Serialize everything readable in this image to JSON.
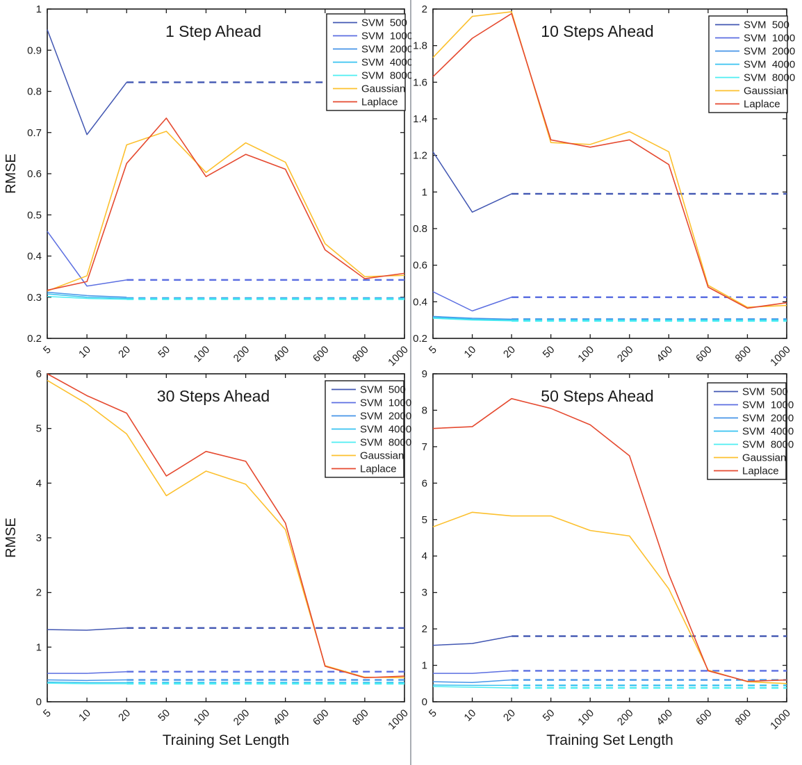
{
  "figure": {
    "xlabel": "Training Set Length",
    "ylabel": "RMSE",
    "categories": [
      "5",
      "10",
      "20",
      "50",
      "100",
      "200",
      "400",
      "600",
      "800",
      "1000"
    ],
    "palette": {
      "svm500": "#4156b2",
      "svm1000": "#5b6ee1",
      "svm2000": "#4695e8",
      "svm4000": "#38c3f0",
      "svm8000": "#4deef2",
      "gaussian": "#fcc02e",
      "laplace": "#e5492f",
      "axis": "#1a1a1a"
    }
  },
  "chart_data": [
    {
      "type": "line",
      "title": "1 Step Ahead",
      "ylabel": "RMSE",
      "xlabel": "",
      "ylim": [
        0.2,
        1
      ],
      "ytick_labels": [
        "0.2",
        "0.3",
        "0.4",
        "0.5",
        "0.6",
        "0.7",
        "0.8",
        "0.9",
        "1"
      ],
      "legend_position": "top-right",
      "grid": false,
      "series": [
        {
          "name": "SVM  500",
          "color": "#4156b2",
          "values": [
            0.95,
            0.695,
            0.822
          ],
          "dashed_value": 0.822
        },
        {
          "name": "SVM  1000",
          "color": "#5b6ee1",
          "values": [
            0.46,
            0.327,
            0.342
          ],
          "dashed_value": 0.342
        },
        {
          "name": "SVM  2000",
          "color": "#4695e8",
          "values": [
            0.312,
            0.304,
            0.3
          ],
          "dashed_value": 0.298
        },
        {
          "name": "SVM  4000",
          "color": "#38c3f0",
          "values": [
            0.308,
            0.3,
            0.297
          ],
          "dashed_value": 0.2965
        },
        {
          "name": "SVM  8000",
          "color": "#4deef2",
          "values": [
            0.302,
            0.297,
            0.295
          ],
          "dashed_value": 0.295
        },
        {
          "name": "Gaussian",
          "color": "#fcc02e",
          "values": [
            0.315,
            0.352,
            0.67,
            0.703,
            0.603,
            0.675,
            0.628,
            0.43,
            0.35,
            0.353
          ],
          "dashed_value": null
        },
        {
          "name": "Laplace",
          "color": "#e5492f",
          "values": [
            0.317,
            0.338,
            0.625,
            0.735,
            0.593,
            0.647,
            0.611,
            0.415,
            0.345,
            0.358
          ],
          "dashed_value": null
        }
      ]
    },
    {
      "type": "line",
      "title": "10 Steps Ahead",
      "ylabel": "",
      "xlabel": "",
      "ylim": [
        0.2,
        2
      ],
      "ytick_labels": [
        "0.2",
        "0.4",
        "0.6",
        "0.8",
        "1",
        "1.2",
        "1.4",
        "1.6",
        "1.8",
        "2"
      ],
      "legend_position": "top-right",
      "grid": false,
      "series": [
        {
          "name": "SVM  500",
          "color": "#4156b2",
          "values": [
            1.22,
            0.89,
            0.99
          ],
          "dashed_value": 0.99
        },
        {
          "name": "SVM  1000",
          "color": "#5b6ee1",
          "values": [
            0.455,
            0.35,
            0.425
          ],
          "dashed_value": 0.425
        },
        {
          "name": "SVM  2000",
          "color": "#4695e8",
          "values": [
            0.32,
            0.31,
            0.305
          ],
          "dashed_value": 0.305
        },
        {
          "name": "SVM  4000",
          "color": "#38c3f0",
          "values": [
            0.315,
            0.305,
            0.3
          ],
          "dashed_value": 0.3
        },
        {
          "name": "SVM  8000",
          "color": "#4deef2",
          "values": [
            0.31,
            0.3,
            0.296
          ],
          "dashed_value": 0.295
        },
        {
          "name": "Gaussian",
          "color": "#fcc02e",
          "values": [
            1.735,
            1.96,
            1.985,
            1.27,
            1.26,
            1.33,
            1.22,
            0.49,
            0.37,
            0.38
          ],
          "dashed_value": null
        },
        {
          "name": "Laplace",
          "color": "#e5492f",
          "values": [
            1.63,
            1.84,
            1.975,
            1.285,
            1.245,
            1.285,
            1.15,
            0.48,
            0.365,
            0.395
          ],
          "dashed_value": null
        }
      ]
    },
    {
      "type": "line",
      "title": "30 Steps Ahead",
      "ylabel": "RMSE",
      "xlabel": "Training Set Length",
      "ylim": [
        0,
        6
      ],
      "ytick_labels": [
        "0",
        "1",
        "2",
        "3",
        "4",
        "5",
        "6"
      ],
      "legend_position": "top-right",
      "grid": false,
      "series": [
        {
          "name": "SVM  500",
          "color": "#4156b2",
          "values": [
            1.32,
            1.31,
            1.35
          ],
          "dashed_value": 1.35
        },
        {
          "name": "SVM  1000",
          "color": "#5b6ee1",
          "values": [
            0.52,
            0.52,
            0.55
          ],
          "dashed_value": 0.55
        },
        {
          "name": "SVM  2000",
          "color": "#4695e8",
          "values": [
            0.4,
            0.39,
            0.4
          ],
          "dashed_value": 0.4
        },
        {
          "name": "SVM  4000",
          "color": "#38c3f0",
          "values": [
            0.36,
            0.35,
            0.35
          ],
          "dashed_value": 0.35
        },
        {
          "name": "SVM  8000",
          "color": "#4deef2",
          "values": [
            0.34,
            0.33,
            0.33
          ],
          "dashed_value": 0.33
        },
        {
          "name": "Gaussian",
          "color": "#fcc02e",
          "values": [
            5.88,
            5.45,
            4.9,
            3.77,
            4.22,
            3.98,
            3.15,
            0.66,
            0.45,
            0.44
          ],
          "dashed_value": null
        },
        {
          "name": "Laplace",
          "color": "#e5492f",
          "values": [
            6.0,
            5.6,
            5.28,
            4.13,
            4.58,
            4.4,
            3.27,
            0.65,
            0.44,
            0.47
          ],
          "dashed_value": null
        }
      ]
    },
    {
      "type": "line",
      "title": "50 Steps Ahead",
      "ylabel": "",
      "xlabel": "Training Set Length",
      "ylim": [
        0,
        9
      ],
      "ytick_labels": [
        "0",
        "1",
        "2",
        "3",
        "4",
        "5",
        "6",
        "7",
        "8",
        "9"
      ],
      "legend_position": "top-right",
      "grid": false,
      "series": [
        {
          "name": "SVM  500",
          "color": "#4156b2",
          "values": [
            1.55,
            1.6,
            1.8
          ],
          "dashed_value": 1.8
        },
        {
          "name": "SVM  1000",
          "color": "#5b6ee1",
          "values": [
            0.78,
            0.78,
            0.85
          ],
          "dashed_value": 0.85
        },
        {
          "name": "SVM  2000",
          "color": "#4695e8",
          "values": [
            0.55,
            0.53,
            0.6
          ],
          "dashed_value": 0.6
        },
        {
          "name": "SVM  4000",
          "color": "#38c3f0",
          "values": [
            0.46,
            0.45,
            0.45
          ],
          "dashed_value": 0.45
        },
        {
          "name": "SVM  8000",
          "color": "#4deef2",
          "values": [
            0.42,
            0.4,
            0.38
          ],
          "dashed_value": 0.38
        },
        {
          "name": "Gaussian",
          "color": "#fcc02e",
          "values": [
            4.8,
            5.2,
            5.1,
            5.1,
            4.7,
            4.55,
            3.1,
            0.87,
            0.55,
            0.5
          ],
          "dashed_value": null
        },
        {
          "name": "Laplace",
          "color": "#e5492f",
          "values": [
            7.5,
            7.55,
            8.32,
            8.05,
            7.6,
            6.75,
            3.5,
            0.85,
            0.56,
            0.6
          ],
          "dashed_value": null
        }
      ]
    }
  ]
}
